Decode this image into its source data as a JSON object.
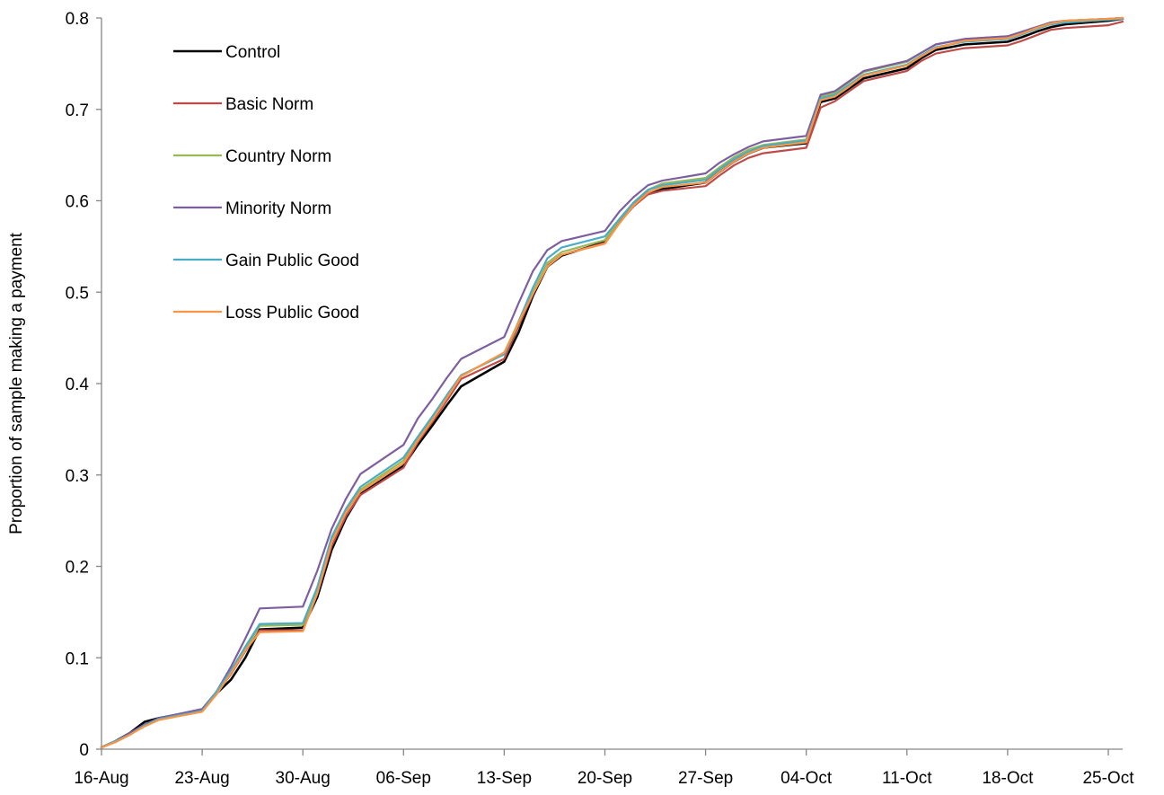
{
  "chart_data": {
    "type": "line",
    "title": "",
    "xlabel": "",
    "ylabel": "Proportion of sample making a payment",
    "ylim": [
      0,
      0.8
    ],
    "yticks": [
      0,
      0.1,
      0.2,
      0.3,
      0.4,
      0.5,
      0.6,
      0.7,
      0.8
    ],
    "ytick_labels": [
      "0",
      "0.1",
      "0.2",
      "0.3",
      "0.4",
      "0.5",
      "0.6",
      "0.7",
      "0.8"
    ],
    "xlim": [
      "2010-08-16",
      "2010-10-26"
    ],
    "xticks": [
      "2010-08-16",
      "2010-08-23",
      "2010-08-30",
      "2010-09-06",
      "2010-09-13",
      "2010-09-20",
      "2010-09-27",
      "2010-10-04",
      "2010-10-11",
      "2010-10-18",
      "2010-10-25"
    ],
    "xtick_labels": [
      "16-Aug",
      "23-Aug",
      "30-Aug",
      "06-Sep",
      "13-Sep",
      "20-Sep",
      "27-Sep",
      "04-Oct",
      "11-Oct",
      "18-Oct",
      "25-Oct"
    ],
    "grid": false,
    "legend_position": "top-left",
    "x": [
      "2010-08-16",
      "2010-08-17",
      "2010-08-18",
      "2010-08-19",
      "2010-08-20",
      "2010-08-23",
      "2010-08-24",
      "2010-08-25",
      "2010-08-26",
      "2010-08-27",
      "2010-08-30",
      "2010-08-31",
      "2010-09-01",
      "2010-09-02",
      "2010-09-03",
      "2010-09-06",
      "2010-09-07",
      "2010-09-08",
      "2010-09-09",
      "2010-09-10",
      "2010-09-13",
      "2010-09-14",
      "2010-09-15",
      "2010-09-16",
      "2010-09-17",
      "2010-09-20",
      "2010-09-21",
      "2010-09-22",
      "2010-09-23",
      "2010-09-24",
      "2010-09-27",
      "2010-09-28",
      "2010-09-29",
      "2010-09-30",
      "2010-10-01",
      "2010-10-04",
      "2010-10-05",
      "2010-10-06",
      "2010-10-07",
      "2010-10-08",
      "2010-10-11",
      "2010-10-12",
      "2010-10-13",
      "2010-10-14",
      "2010-10-15",
      "2010-10-18",
      "2010-10-19",
      "2010-10-20",
      "2010-10-21",
      "2010-10-22",
      "2010-10-25",
      "2010-10-26"
    ],
    "series": [
      {
        "name": "Control",
        "color": "#000000",
        "width": 2.6,
        "values": [
          0.002,
          0.009,
          0.018,
          0.03,
          0.034,
          0.043,
          0.061,
          0.076,
          0.1,
          0.131,
          0.133,
          0.166,
          0.218,
          0.253,
          0.279,
          0.31,
          0.333,
          0.354,
          0.376,
          0.397,
          0.424,
          0.456,
          0.496,
          0.528,
          0.54,
          0.555,
          0.578,
          0.596,
          0.609,
          0.613,
          0.62,
          0.632,
          0.643,
          0.652,
          0.658,
          0.663,
          0.708,
          0.712,
          0.723,
          0.734,
          0.745,
          0.756,
          0.765,
          0.768,
          0.771,
          0.774,
          0.779,
          0.785,
          0.79,
          0.793,
          0.797,
          0.799
        ]
      },
      {
        "name": "Basic Norm",
        "color": "#BE4B48",
        "width": 2.2,
        "values": [
          0.002,
          0.008,
          0.016,
          0.026,
          0.033,
          0.042,
          0.061,
          0.082,
          0.107,
          0.13,
          0.13,
          0.17,
          0.222,
          0.255,
          0.278,
          0.308,
          0.336,
          0.358,
          0.381,
          0.405,
          0.427,
          0.463,
          0.498,
          0.529,
          0.541,
          0.554,
          0.576,
          0.594,
          0.607,
          0.611,
          0.616,
          0.628,
          0.639,
          0.647,
          0.652,
          0.658,
          0.702,
          0.709,
          0.72,
          0.731,
          0.742,
          0.753,
          0.761,
          0.764,
          0.767,
          0.77,
          0.775,
          0.781,
          0.787,
          0.789,
          0.792,
          0.796
        ]
      },
      {
        "name": "Country Norm",
        "color": "#98B954",
        "width": 2.2,
        "values": [
          0.002,
          0.009,
          0.016,
          0.026,
          0.033,
          0.043,
          0.063,
          0.085,
          0.11,
          0.135,
          0.136,
          0.174,
          0.23,
          0.26,
          0.284,
          0.316,
          0.34,
          0.362,
          0.386,
          0.409,
          0.432,
          0.466,
          0.5,
          0.532,
          0.544,
          0.557,
          0.579,
          0.598,
          0.612,
          0.619,
          0.625,
          0.637,
          0.648,
          0.656,
          0.661,
          0.667,
          0.714,
          0.718,
          0.73,
          0.741,
          0.752,
          0.762,
          0.771,
          0.774,
          0.777,
          0.78,
          0.785,
          0.79,
          0.795,
          0.797,
          0.799,
          0.8
        ]
      },
      {
        "name": "Minority Norm",
        "color": "#7D5FA0",
        "width": 2.2,
        "values": [
          0.002,
          0.009,
          0.018,
          0.027,
          0.034,
          0.044,
          0.063,
          0.09,
          0.121,
          0.154,
          0.156,
          0.195,
          0.241,
          0.274,
          0.301,
          0.333,
          0.362,
          0.383,
          0.406,
          0.427,
          0.451,
          0.488,
          0.523,
          0.546,
          0.556,
          0.567,
          0.588,
          0.604,
          0.617,
          0.622,
          0.63,
          0.642,
          0.651,
          0.659,
          0.665,
          0.671,
          0.716,
          0.72,
          0.731,
          0.742,
          0.753,
          0.762,
          0.771,
          0.774,
          0.777,
          0.78,
          0.785,
          0.79,
          0.795,
          0.797,
          0.799,
          0.8
        ]
      },
      {
        "name": "Gain Public Good",
        "color": "#4BACC6",
        "width": 2.2,
        "values": [
          0.002,
          0.009,
          0.016,
          0.026,
          0.033,
          0.042,
          0.063,
          0.086,
          0.112,
          0.137,
          0.138,
          0.177,
          0.232,
          0.263,
          0.287,
          0.319,
          0.342,
          0.364,
          0.387,
          0.409,
          0.432,
          0.468,
          0.505,
          0.537,
          0.549,
          0.561,
          0.58,
          0.598,
          0.612,
          0.617,
          0.623,
          0.635,
          0.646,
          0.654,
          0.66,
          0.666,
          0.712,
          0.716,
          0.727,
          0.738,
          0.749,
          0.759,
          0.768,
          0.771,
          0.774,
          0.777,
          0.782,
          0.788,
          0.793,
          0.795,
          0.798,
          0.799
        ]
      },
      {
        "name": "Loss Public Good",
        "color": "#F79646",
        "width": 2.2,
        "values": [
          0.002,
          0.008,
          0.016,
          0.025,
          0.032,
          0.041,
          0.06,
          0.083,
          0.108,
          0.128,
          0.129,
          0.17,
          0.226,
          0.259,
          0.282,
          0.313,
          0.338,
          0.36,
          0.384,
          0.408,
          0.434,
          0.467,
          0.498,
          0.528,
          0.541,
          0.553,
          0.575,
          0.595,
          0.609,
          0.615,
          0.62,
          0.632,
          0.643,
          0.652,
          0.658,
          0.664,
          0.71,
          0.714,
          0.725,
          0.737,
          0.748,
          0.758,
          0.767,
          0.771,
          0.775,
          0.778,
          0.783,
          0.789,
          0.794,
          0.797,
          0.799,
          0.8
        ]
      }
    ]
  }
}
